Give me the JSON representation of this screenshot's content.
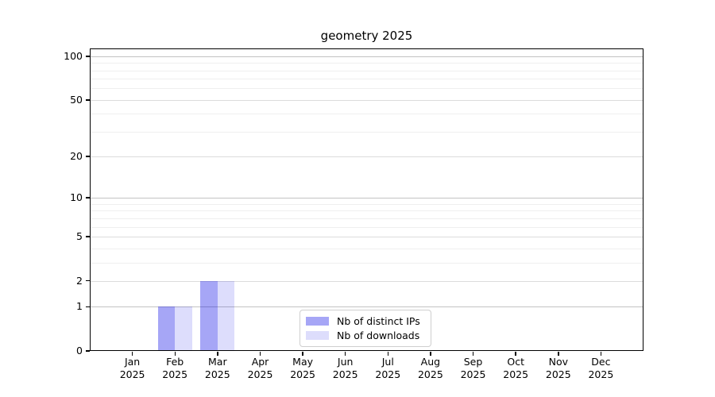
{
  "chart_data": {
    "type": "bar",
    "title": "geometry 2025",
    "categories": [
      "Jan",
      "Feb",
      "Mar",
      "Apr",
      "May",
      "Jun",
      "Jul",
      "Aug",
      "Sep",
      "Oct",
      "Nov",
      "Dec"
    ],
    "category_year": "2025",
    "series": [
      {
        "name": "Nb of distinct IPs",
        "color": "#0000E659",
        "values": [
          0,
          1,
          2,
          0,
          0,
          0,
          0,
          0,
          0,
          0,
          0,
          0
        ]
      },
      {
        "name": "Nb of downloads",
        "color": "#0000E622",
        "values": [
          0,
          1,
          2,
          0,
          0,
          0,
          0,
          0,
          0,
          0,
          0,
          0
        ]
      }
    ],
    "xlabel": "",
    "ylabel": "",
    "y_axis": {
      "scale": "log1p",
      "ylim": [
        0,
        113
      ],
      "major_ticks": [
        0,
        1,
        2,
        5,
        10,
        20,
        50,
        100
      ],
      "minor_ticks": [
        3,
        4,
        6,
        7,
        8,
        9,
        30,
        40,
        60,
        70,
        80,
        90
      ],
      "decade_ticks": [
        1,
        10,
        100
      ]
    },
    "grid": {
      "enabled": true,
      "minor_color": "#efefef",
      "major_color": "#dcdcdc",
      "decade_color": "#c2c2c2"
    },
    "legend": {
      "position": "lower center"
    },
    "bar_layout": {
      "bar_width_frac": 0.4
    }
  }
}
